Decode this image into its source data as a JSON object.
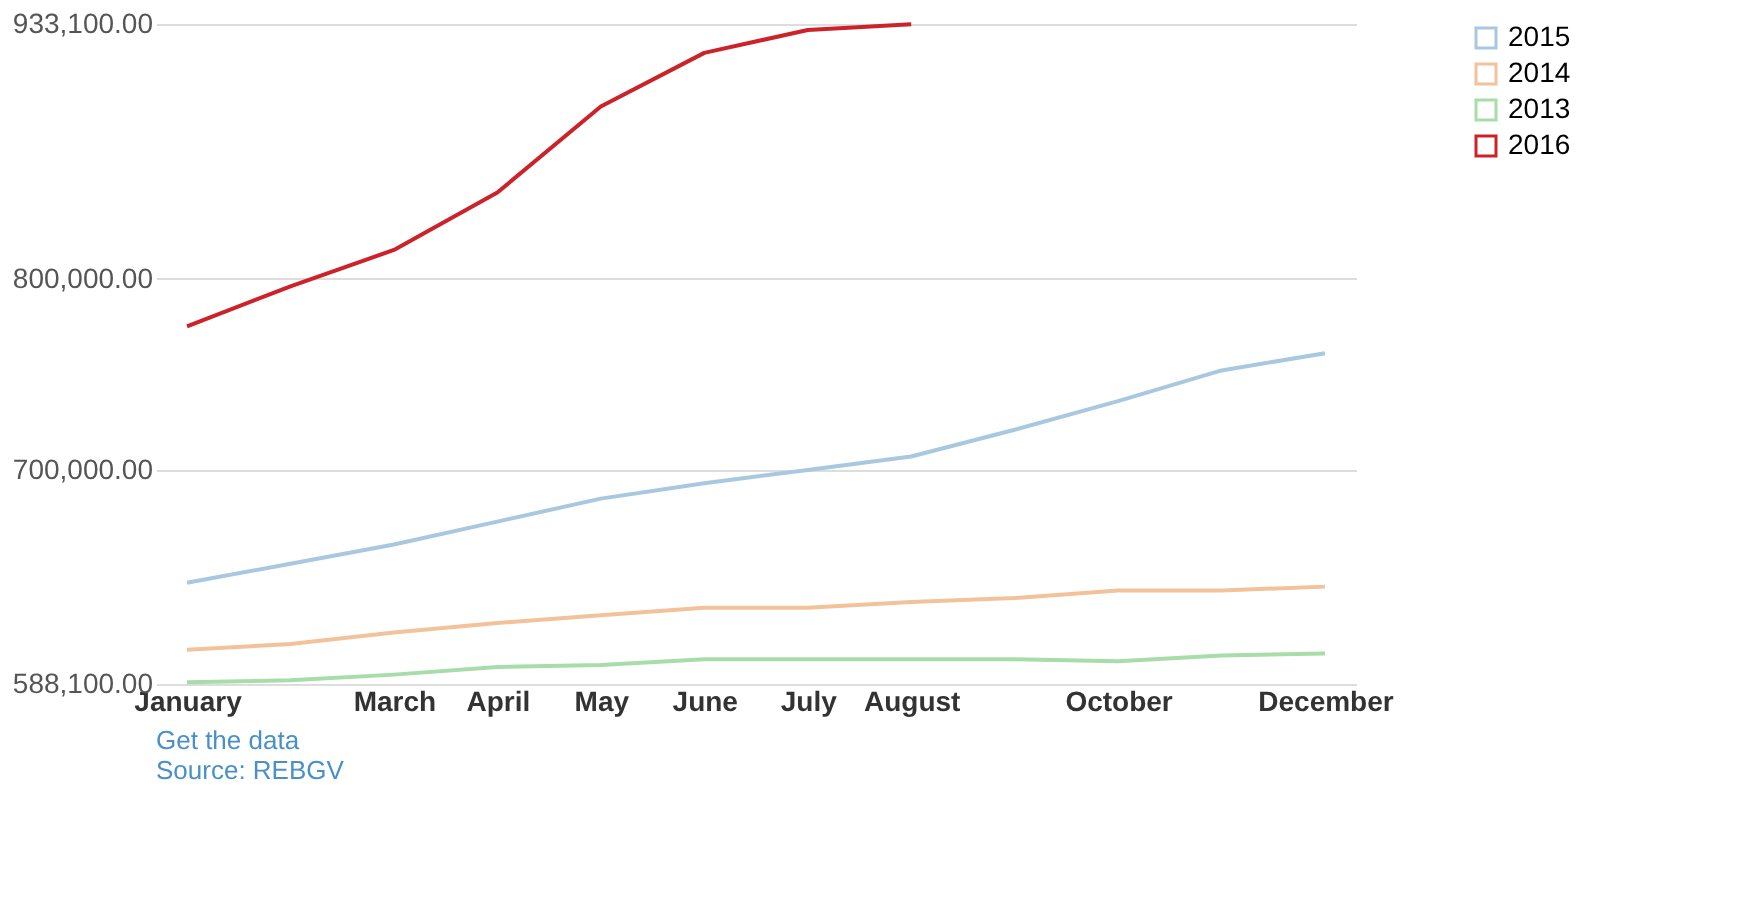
{
  "chart_data": {
    "type": "line",
    "categories": [
      "January",
      null,
      "March",
      "April",
      "May",
      "June",
      "July",
      "August",
      null,
      "October",
      null,
      "December"
    ],
    "series": [
      {
        "name": "2015",
        "color": "#a8c8e0",
        "values": [
          641000,
          651000,
          661000,
          673000,
          685000,
          693000,
          700000,
          707000,
          721000,
          736000,
          752000,
          761000
        ]
      },
      {
        "name": "2014",
        "color": "#f2c29a",
        "values": [
          606000,
          609000,
          615000,
          620000,
          624000,
          628000,
          628000,
          631000,
          633000,
          637000,
          637000,
          639000
        ]
      },
      {
        "name": "2013",
        "color": "#a8dca8",
        "values": [
          589000,
          590000,
          593000,
          597000,
          598000,
          601000,
          601000,
          601000,
          601000,
          600000,
          603000,
          604000
        ]
      },
      {
        "name": "2016",
        "color": "#cc2229",
        "values": [
          775000,
          796000,
          815000,
          845000,
          890000,
          918000,
          930000,
          933000,
          null,
          null,
          null,
          null
        ]
      }
    ],
    "ylim": [
      588100,
      933100
    ],
    "yticks": [
      {
        "value": 588100,
        "label": "588,100.00"
      },
      {
        "value": 700000,
        "label": "700,000.00"
      },
      {
        "value": 800000,
        "label": "800,000.00"
      },
      {
        "value": 933100,
        "label": "933,100.00"
      }
    ],
    "grid": "y",
    "legend": "right",
    "marker": "none",
    "line_style": "solid",
    "annotations": [
      "Get the data",
      "Source: REBGV"
    ]
  }
}
